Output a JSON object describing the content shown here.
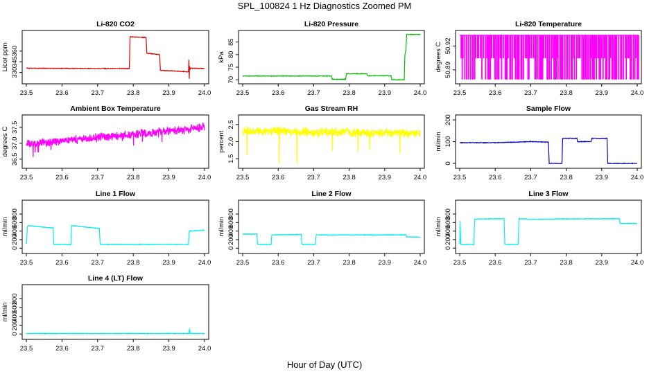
{
  "figure": {
    "title": "SPL_100824  1 Hz Diagnostics Zoomed PM",
    "xlabel": "Hour of Day (UTC)"
  },
  "chart_data": [
    {
      "type": "line",
      "title": "Li-820 CO2",
      "ylabel": "Licor ppm",
      "color": "#dd0000",
      "xlim": [
        23.5,
        24.0
      ],
      "ylim": [
        318,
        385
      ],
      "xticks": [
        23.5,
        23.6,
        23.7,
        23.8,
        23.9,
        24.0
      ],
      "xtick_labels": [
        "23.5",
        "23.6",
        "23.7",
        "23.8",
        "23.9",
        "24.0"
      ],
      "yticks": [
        330,
        345,
        360
      ],
      "ytick_labels": [
        "330",
        "345",
        "360"
      ],
      "series": [
        {
          "x": [
            23.5,
            23.6,
            23.7,
            23.789,
            23.791,
            23.836,
            23.838,
            23.874,
            23.876,
            23.955,
            23.956,
            23.957,
            23.958,
            23.96,
            23.961,
            24.0
          ],
          "y": [
            336,
            335.8,
            335.5,
            335.5,
            380,
            379,
            357,
            355,
            333,
            331,
            348,
            321,
            339,
            335,
            336,
            335.5
          ]
        }
      ]
    },
    {
      "type": "line",
      "title": "Li-820 Pressure",
      "ylabel": "kPa",
      "color": "#00bb00",
      "xlim": [
        23.5,
        24.0
      ],
      "ylim": [
        69.5,
        88.5
      ],
      "xticks": [
        23.5,
        23.6,
        23.7,
        23.8,
        23.9,
        24.0
      ],
      "xtick_labels": [
        "23.5",
        "23.6",
        "23.7",
        "23.8",
        "23.9",
        "24.0"
      ],
      "yticks": [
        70,
        75,
        80,
        85
      ],
      "ytick_labels": [
        "70",
        "75",
        "80",
        "85"
      ],
      "series": [
        {
          "x": [
            23.5,
            23.75,
            23.752,
            23.79,
            23.792,
            23.85,
            23.852,
            23.918,
            23.92,
            23.955,
            23.957,
            23.96,
            23.962,
            24.0
          ],
          "y": [
            71.5,
            71.5,
            70.2,
            70.2,
            72.4,
            72.4,
            71.6,
            71.6,
            70.0,
            70.0,
            80,
            82,
            88.0,
            88.0
          ]
        }
      ]
    },
    {
      "type": "line",
      "title": "Li-820 Temperature",
      "ylabel": "degrees C",
      "color": "#ff00ff",
      "xlim": [
        23.5,
        24.0
      ],
      "ylim": [
        50.876,
        50.936
      ],
      "xticks": [
        23.5,
        23.6,
        23.7,
        23.8,
        23.9,
        24.0
      ],
      "xtick_labels": [
        "23.5",
        "23.6",
        "23.7",
        "23.8",
        "23.9",
        "24.0"
      ],
      "yticks": [
        50.89,
        50.92
      ],
      "ytick_labels": [
        "50.89",
        "50.92"
      ],
      "series": [
        {
          "pattern": "bistable",
          "low": 50.8785,
          "high": 50.9335,
          "mid_level": 50.905
        }
      ]
    },
    {
      "type": "line",
      "title": "Ambient Box Temperature",
      "ylabel": "degrees C",
      "color": "#ff00ff",
      "xlim": [
        23.5,
        24.0
      ],
      "ylim": [
        36.3,
        37.8
      ],
      "xticks": [
        23.5,
        23.6,
        23.7,
        23.8,
        23.9,
        24.0
      ],
      "xtick_labels": [
        "23.5",
        "23.6",
        "23.7",
        "23.8",
        "23.9",
        "24.0"
      ],
      "yticks": [
        36.5,
        37.0,
        37.5
      ],
      "ytick_labels": [
        "36.5",
        "37.0",
        "37.5"
      ],
      "series": [
        {
          "x": [
            23.5,
            23.6,
            23.7,
            23.8,
            23.9,
            24.0
          ],
          "y": [
            36.95,
            37.08,
            37.18,
            37.28,
            37.38,
            37.5
          ],
          "noise": 0.12
        }
      ]
    },
    {
      "type": "line",
      "title": "Gas Stream RH",
      "ylabel": "percent",
      "color": "#ffff00",
      "xlim": [
        23.5,
        24.0
      ],
      "ylim": [
        1.3,
        2.7
      ],
      "xticks": [
        23.5,
        23.6,
        23.7,
        23.8,
        23.9,
        24.0
      ],
      "xtick_labels": [
        "23.5",
        "23.6",
        "23.7",
        "23.8",
        "23.9",
        "24.0"
      ],
      "yticks": [
        1.5,
        2.0,
        2.5
      ],
      "ytick_labels": [
        "1.5",
        "2.0",
        "2.5"
      ],
      "series": [
        {
          "x": [
            23.5,
            23.6,
            23.7,
            23.8,
            23.9,
            24.0
          ],
          "y": [
            2.3,
            2.3,
            2.28,
            2.27,
            2.25,
            2.25
          ],
          "noise": 0.12,
          "dips_x": [
            23.512,
            23.603,
            23.653,
            23.753,
            23.825,
            23.858,
            23.943
          ],
          "dips_y": [
            1.6,
            1.35,
            1.35,
            1.72,
            1.7,
            1.75,
            1.65
          ]
        }
      ]
    },
    {
      "type": "line",
      "title": "Sample Flow",
      "ylabel": "ml/min",
      "color": "#0000cc",
      "xlim": [
        23.5,
        24.0
      ],
      "ylim": [
        -10,
        210
      ],
      "xticks": [
        23.5,
        23.6,
        23.7,
        23.8,
        23.9,
        24.0
      ],
      "xtick_labels": [
        "23.5",
        "23.6",
        "23.7",
        "23.8",
        "23.9",
        "24.0"
      ],
      "yticks": [
        0,
        100,
        200
      ],
      "ytick_labels": [
        "0",
        "100",
        "200"
      ],
      "series": [
        {
          "x": [
            23.5,
            23.6,
            23.7,
            23.75,
            23.752,
            23.788,
            23.79,
            23.83,
            23.832,
            23.87,
            23.872,
            23.915,
            23.917,
            24.0
          ],
          "y": [
            95,
            95,
            100,
            98,
            0,
            0,
            115,
            115,
            100,
            100,
            115,
            115,
            0,
            0
          ]
        }
      ]
    },
    {
      "type": "line",
      "title": "Line 1 Flow",
      "ylabel": "ml/min",
      "color": "#00eeee",
      "xlim": [
        23.5,
        24.0
      ],
      "ylim": [
        -60,
        1060
      ],
      "xticks": [
        23.5,
        23.6,
        23.7,
        23.8,
        23.9,
        24.0
      ],
      "xtick_labels": [
        "23.5",
        "23.6",
        "23.7",
        "23.8",
        "23.9",
        "24.0"
      ],
      "yticks": [
        0,
        200,
        400,
        600,
        800
      ],
      "ytick_labels": [
        "0",
        "200",
        "400",
        "600",
        "800"
      ],
      "series": [
        {
          "x": [
            23.5,
            23.503,
            23.505,
            23.575,
            23.577,
            23.625,
            23.627,
            23.705,
            23.707,
            23.955,
            23.957,
            24.0
          ],
          "y": [
            100,
            500,
            530,
            470,
            90,
            90,
            530,
            460,
            90,
            90,
            400,
            420
          ]
        }
      ]
    },
    {
      "type": "line",
      "title": "Line 2 Flow",
      "ylabel": "ml/min",
      "color": "#00eeee",
      "xlim": [
        23.5,
        24.0
      ],
      "ylim": [
        -60,
        1060
      ],
      "xticks": [
        23.5,
        23.6,
        23.7,
        23.8,
        23.9,
        24.0
      ],
      "xtick_labels": [
        "23.5",
        "23.6",
        "23.7",
        "23.8",
        "23.9",
        "24.0"
      ],
      "yticks": [
        0,
        200,
        400,
        600,
        800
      ],
      "ytick_labels": [
        "0",
        "200",
        "400",
        "600",
        "800"
      ],
      "series": [
        {
          "x": [
            23.5,
            23.54,
            23.542,
            23.58,
            23.582,
            23.665,
            23.667,
            23.705,
            23.707,
            23.96,
            23.962,
            24.0
          ],
          "y": [
            330,
            330,
            90,
            90,
            310,
            320,
            90,
            90,
            310,
            310,
            260,
            260
          ]
        }
      ]
    },
    {
      "type": "line",
      "title": "Line 3 Flow",
      "ylabel": "ml/min",
      "color": "#00eeee",
      "xlim": [
        23.5,
        24.0
      ],
      "ylim": [
        -60,
        1060
      ],
      "xticks": [
        23.5,
        23.6,
        23.7,
        23.8,
        23.9,
        24.0
      ],
      "xtick_labels": [
        "23.5",
        "23.6",
        "23.7",
        "23.8",
        "23.9",
        "24.0"
      ],
      "yticks": [
        0,
        200,
        400,
        600,
        800
      ],
      "ytick_labels": [
        "0",
        "200",
        "400",
        "600",
        "800"
      ],
      "series": [
        {
          "x": [
            23.5,
            23.501,
            23.503,
            23.54,
            23.542,
            23.625,
            23.627,
            23.665,
            23.667,
            23.7,
            23.95,
            23.952,
            24.0
          ],
          "y": [
            100,
            640,
            90,
            90,
            680,
            690,
            90,
            90,
            690,
            680,
            690,
            580,
            580
          ]
        }
      ]
    },
    {
      "type": "line",
      "title": "Line 4 (LT) Flow",
      "ylabel": "ml/min",
      "color": "#00eeee",
      "xlim": [
        23.5,
        24.0
      ],
      "ylim": [
        -60,
        1060
      ],
      "xticks": [
        23.5,
        23.6,
        23.7,
        23.8,
        23.9,
        24.0
      ],
      "xtick_labels": [
        "23.5",
        "23.6",
        "23.7",
        "23.8",
        "23.9",
        "24.0"
      ],
      "yticks": [
        0,
        200,
        400,
        600,
        800
      ],
      "ytick_labels": [
        "0",
        "200",
        "400",
        "600",
        "800"
      ],
      "series": [
        {
          "x": [
            23.5,
            23.956,
            23.958,
            23.96,
            23.962,
            24.0
          ],
          "y": [
            10,
            10,
            120,
            10,
            10,
            10
          ]
        }
      ]
    }
  ]
}
